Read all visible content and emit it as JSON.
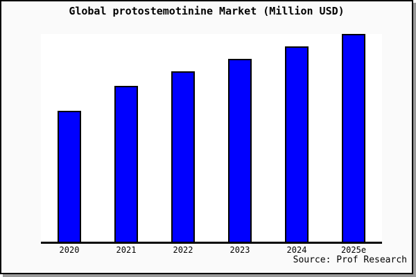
{
  "chart_data": {
    "type": "bar",
    "title": "Global protostemotinine Market (Million USD)",
    "categories": [
      "2020",
      "2021",
      "2022",
      "2023",
      "2024",
      "2025e"
    ],
    "values": [
      63,
      75,
      82,
      88,
      94,
      100
    ],
    "values_note": "No y-axis scale or value labels are shown in the chart; values are estimated bar heights as a percentage of the tallest bar (2025e = 100)",
    "xlabel": "",
    "ylabel": "",
    "ylim": [
      0,
      101
    ],
    "grid": false,
    "legend": null,
    "source_note": "Source: Prof Research",
    "colors": {
      "bar_fill": "#0000ff",
      "bar_edge": "#000000",
      "frame_border": "#000000",
      "frame_shadow": "#999999",
      "background": "#fafafa",
      "plot_background": "#ffffff",
      "text": "#000000"
    }
  }
}
